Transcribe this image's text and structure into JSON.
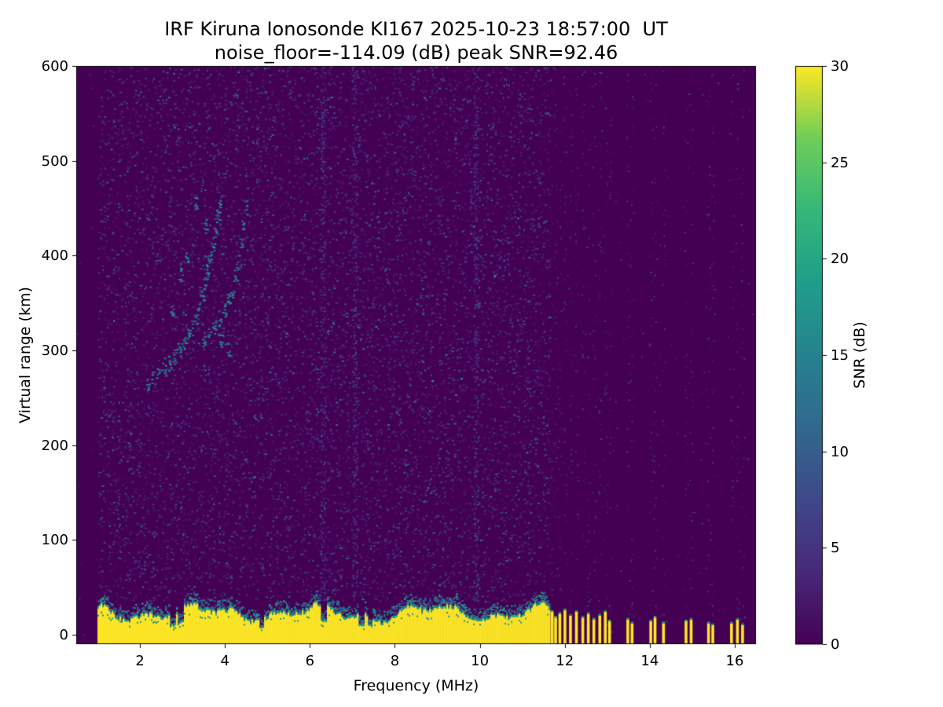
{
  "chart_data": {
    "type": "heatmap",
    "title": "IRF Kiruna Ionosonde KI167 2025-10-23 18:57:00  UT",
    "subtitle": "noise_floor=-114.09 (dB) peak SNR=92.46",
    "station": "IRF Kiruna Ionosonde KI167",
    "timestamp_ut": "2025-10-23 18:57:00",
    "noise_floor_db": -114.09,
    "peak_snr_db": 92.46,
    "xlabel": "Frequency (MHz)",
    "ylabel": "Virtual range (km)",
    "xlim": [
      0.5,
      16.5
    ],
    "ylim": [
      -10,
      600
    ],
    "xticks": [
      2,
      4,
      6,
      8,
      10,
      12,
      14,
      16
    ],
    "yticks": [
      0,
      100,
      200,
      300,
      400,
      500,
      600
    ],
    "grid": false,
    "colorbar": {
      "label": "SNR (dB)",
      "min": 0,
      "max": 30,
      "ticks": [
        0,
        5,
        10,
        15,
        20,
        25,
        30
      ],
      "colormap": "viridis"
    },
    "features": {
      "background_snr_db": 0,
      "noise_region": {
        "freq_range": [
          1.0,
          11.65
        ],
        "range_km": [
          35,
          600
        ],
        "speckle_count": 9200,
        "snr_range_db": [
          1.5,
          12
        ]
      },
      "sparse_noise": {
        "freq_range": [
          0.5,
          16.5
        ],
        "range_km": [
          -5,
          600
        ],
        "speckle_count": 450,
        "snr_range_db": [
          1.5,
          9
        ]
      },
      "noise_columns_mhz": [
        6.3,
        7.05,
        9.9
      ],
      "echo_trace": {
        "snr_db_range": [
          8,
          18
        ],
        "points": [
          [
            2.18,
            266
          ],
          [
            2.3,
            270
          ],
          [
            2.42,
            274
          ],
          [
            2.55,
            280
          ],
          [
            2.68,
            287
          ],
          [
            2.8,
            294
          ],
          [
            2.9,
            300
          ],
          [
            3.0,
            307
          ],
          [
            3.1,
            315
          ],
          [
            3.2,
            324
          ],
          [
            3.3,
            334
          ],
          [
            3.38,
            346
          ],
          [
            3.46,
            358
          ],
          [
            3.52,
            370
          ],
          [
            3.58,
            383
          ],
          [
            3.64,
            397
          ],
          [
            3.7,
            412
          ],
          [
            3.76,
            427
          ],
          [
            3.82,
            442
          ],
          [
            3.88,
            456
          ],
          [
            3.5,
            310
          ],
          [
            3.62,
            318
          ],
          [
            3.74,
            326
          ],
          [
            3.86,
            334
          ],
          [
            3.98,
            342
          ],
          [
            4.08,
            352
          ],
          [
            4.16,
            364
          ],
          [
            4.24,
            378
          ],
          [
            4.3,
            394
          ],
          [
            4.36,
            412
          ],
          [
            4.42,
            432
          ],
          [
            4.48,
            452
          ],
          [
            2.95,
            380
          ],
          [
            3.1,
            398
          ],
          [
            3.3,
            455
          ],
          [
            2.75,
            340
          ],
          [
            3.55,
            432
          ],
          [
            3.9,
            310
          ],
          [
            4.05,
            300
          ]
        ]
      },
      "ground_clutter": {
        "freq_range": [
          1.0,
          11.65
        ],
        "top_km_range": [
          14,
          38
        ],
        "snr_db": 30,
        "notch_freqs_mhz": [
          2.75,
          2.95,
          4.85,
          6.32,
          7.2,
          7.4
        ]
      },
      "clutter_stripes": [
        {
          "f": 11.7,
          "h": 24
        },
        {
          "f": 11.78,
          "h": 18
        },
        {
          "f": 11.88,
          "h": 22
        },
        {
          "f": 12.0,
          "h": 26
        },
        {
          "f": 12.13,
          "h": 20
        },
        {
          "f": 12.27,
          "h": 24
        },
        {
          "f": 12.42,
          "h": 18
        },
        {
          "f": 12.55,
          "h": 22
        },
        {
          "f": 12.68,
          "h": 16
        },
        {
          "f": 12.82,
          "h": 20
        },
        {
          "f": 12.95,
          "h": 24
        },
        {
          "f": 13.05,
          "h": 14
        },
        {
          "f": 13.48,
          "h": 16
        },
        {
          "f": 13.58,
          "h": 12
        },
        {
          "f": 14.02,
          "h": 14
        },
        {
          "f": 14.12,
          "h": 18
        },
        {
          "f": 14.32,
          "h": 12
        },
        {
          "f": 14.85,
          "h": 14
        },
        {
          "f": 14.97,
          "h": 16
        },
        {
          "f": 15.38,
          "h": 12
        },
        {
          "f": 15.48,
          "h": 10
        },
        {
          "f": 15.92,
          "h": 12
        },
        {
          "f": 16.06,
          "h": 16
        },
        {
          "f": 16.18,
          "h": 10
        }
      ]
    }
  }
}
